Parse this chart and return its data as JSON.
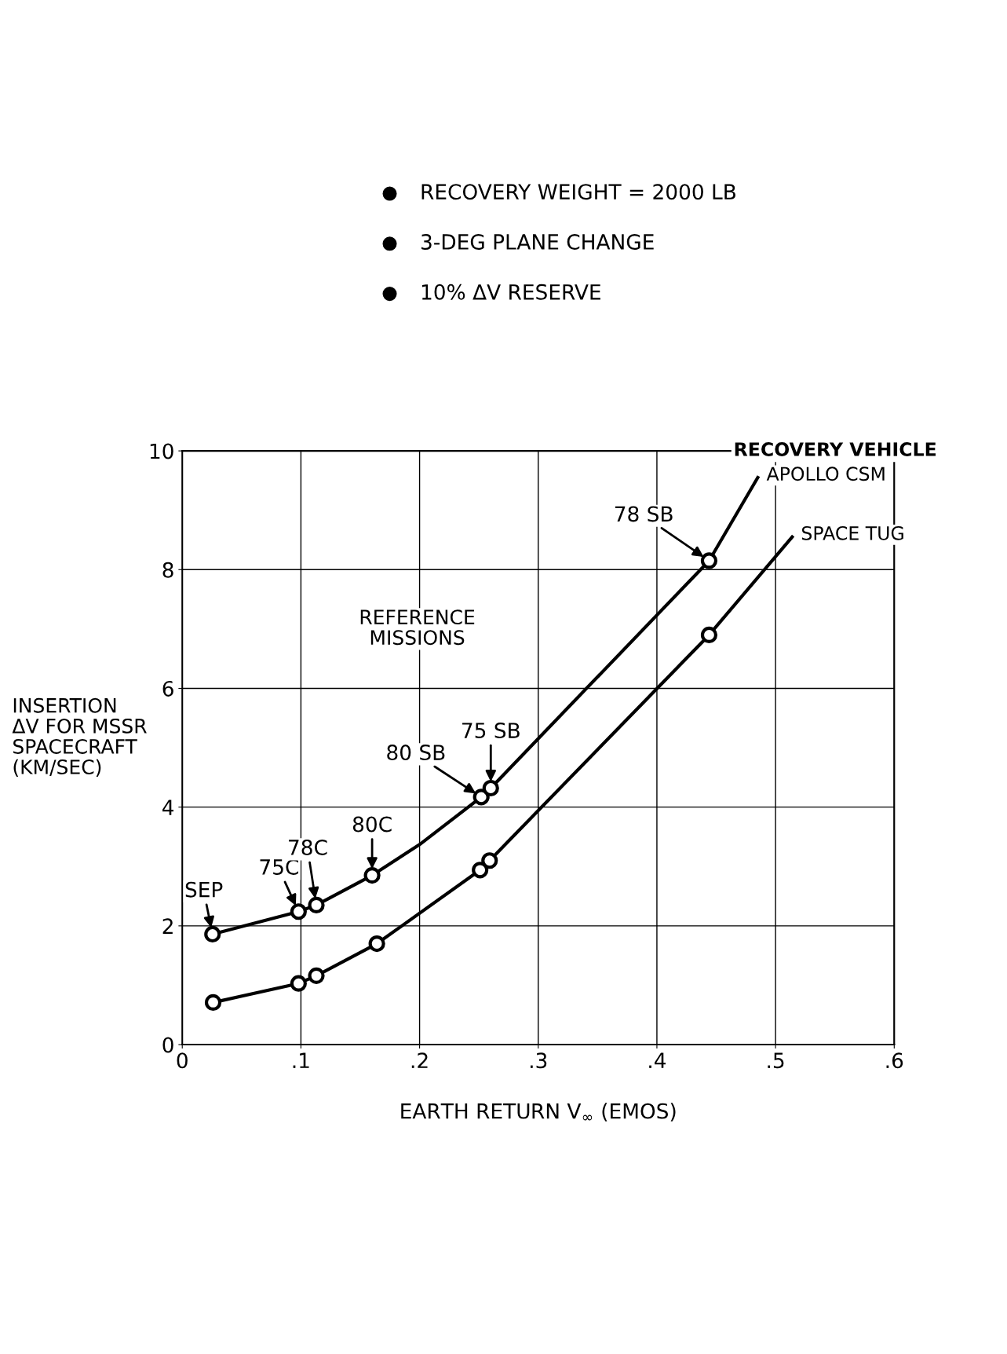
{
  "chart_data": {
    "type": "line",
    "xlabel": "EARTH RETURN V$_{∞}$ (EMOS)",
    "ylabel": "INSERTION\nΔV FOR MSSR\nSPACECRAFT\n(KM/SEC)",
    "legend_title": "RECOVERY VEHICLE",
    "xlim": [
      0,
      0.6
    ],
    "ylim": [
      0,
      10
    ],
    "xticks": [
      0,
      {
        "value": 0.1,
        "label": ".1"
      },
      {
        "value": 0.2,
        "label": ".2"
      },
      {
        "value": 0.3,
        "label": ".3"
      },
      {
        "value": 0.4,
        "label": ".4"
      },
      {
        "value": 0.5,
        "label": ".5"
      },
      {
        "value": 0.6,
        "label": ".6"
      }
    ],
    "yticks": [
      0,
      2,
      4,
      6,
      8,
      10
    ],
    "grid": true,
    "legend": false,
    "line_style": "solid",
    "series": [
      {
        "name": "APOLLO CSM",
        "color": "#000000",
        "marker": "none",
        "x": [
          0.0255,
          0.098,
          0.113,
          0.16,
          0.2,
          0.252,
          0.26,
          0.444,
          0.485
        ],
        "values": [
          1.86,
          2.24,
          2.35,
          2.85,
          3.37,
          4.17,
          4.32,
          8.15,
          9.55
        ]
      },
      {
        "name": "SPACE TUG",
        "color": "#000000",
        "marker": "none",
        "x": [
          0.026,
          0.098,
          0.113,
          0.164,
          0.251,
          0.259,
          0.444,
          0.514
        ],
        "values": [
          0.71,
          1.03,
          1.16,
          1.7,
          2.94,
          3.1,
          6.9,
          8.55
        ]
      },
      {
        "type": "scatter",
        "color": "#000000",
        "marker": "circle",
        "x": [
          0.0255,
          0.098,
          0.113,
          0.16,
          0.252,
          0.26,
          0.444
        ],
        "values": [
          1.86,
          2.24,
          2.35,
          2.85,
          4.17,
          4.32,
          8.15
        ]
      },
      {
        "type": "scatter",
        "color": "#000000",
        "marker": "circle",
        "x": [
          0.026,
          0.098,
          0.113,
          0.164,
          0.251,
          0.259,
          0.444
        ],
        "values": [
          0.71,
          1.03,
          1.16,
          1.7,
          2.94,
          3.1,
          6.9
        ]
      }
    ],
    "annotations": [
      "RECOVERY WEIGHT = 2000 LB",
      "3-DEG PLANE CHANGE",
      "10% ΔV RESERVE",
      "REFERENCE\nMISSIONS",
      {
        "text": "SEP",
        "x": 0.0255,
        "y": 1.86
      },
      {
        "text": "75C",
        "x": 0.098,
        "y": 2.24
      },
      {
        "text": "78C",
        "x": 0.113,
        "y": 2.35
      },
      {
        "text": "80C",
        "x": 0.16,
        "y": 2.85
      },
      {
        "text": "80 SB",
        "x": 0.252,
        "y": 4.17
      },
      {
        "text": "75 SB",
        "x": 0.26,
        "y": 4.32
      },
      {
        "text": "78 SB",
        "x": 0.444,
        "y": 8.15
      }
    ]
  }
}
